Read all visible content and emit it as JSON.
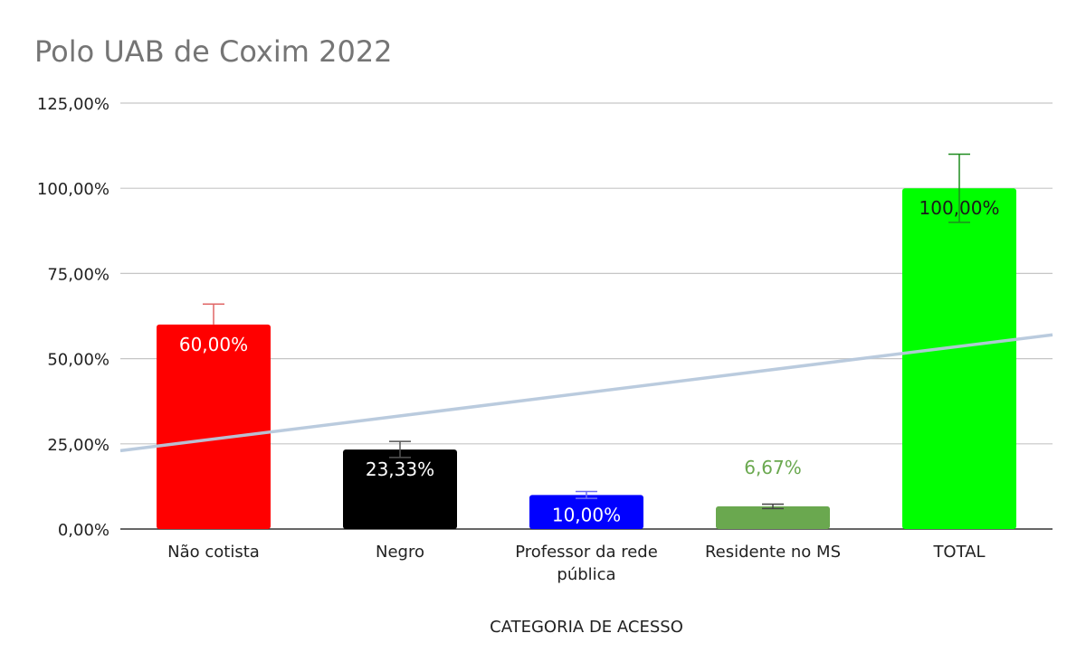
{
  "chart_data": {
    "type": "bar",
    "title": "Polo UAB de Coxim 2022",
    "xlabel": "CATEGORIA DE ACESSO",
    "ylabel": "",
    "ylim": [
      0,
      125
    ],
    "yticks": [
      0,
      25,
      50,
      75,
      100,
      125
    ],
    "ytick_labels": [
      "0,00%",
      "25,00%",
      "50,00%",
      "75,00%",
      "100,00%",
      "125,00%"
    ],
    "grid": true,
    "legend": "none",
    "categories": [
      [
        "Não cotista"
      ],
      [
        "Negro"
      ],
      [
        "Professor da rede",
        "pública"
      ],
      [
        "Residente no MS"
      ],
      [
        "TOTAL"
      ]
    ],
    "values": [
      60,
      23.33,
      10,
      6.67,
      100
    ],
    "data_labels": [
      "60,00%",
      "23,33%",
      "10,00%",
      "6,67%",
      "100,00%"
    ],
    "label_position": [
      "inside",
      "inside",
      "inside",
      "above",
      "inside"
    ],
    "error_bars": [
      {
        "low": 60,
        "high": 66
      },
      {
        "low": 21,
        "high": 25.7
      },
      {
        "low": 9,
        "high": 11
      },
      {
        "low": 6,
        "high": 7.3
      },
      {
        "low": 90,
        "high": 110
      }
    ],
    "colors": [
      "#ff0000",
      "#000000",
      "#0000ff",
      "#6aa84f",
      "#00ff00"
    ],
    "error_colors": [
      "#e06666",
      "#555555",
      "#6d6df5",
      "#444444",
      "#1e8c1e"
    ],
    "label_colors": [
      "#ffffff",
      "#ffffff",
      "#ffffff",
      "#6aa84f",
      "#1a1a1a"
    ],
    "trendline": {
      "type": "linear",
      "color": "#b7c9dd",
      "start_value": 23,
      "end_value": 57
    }
  }
}
